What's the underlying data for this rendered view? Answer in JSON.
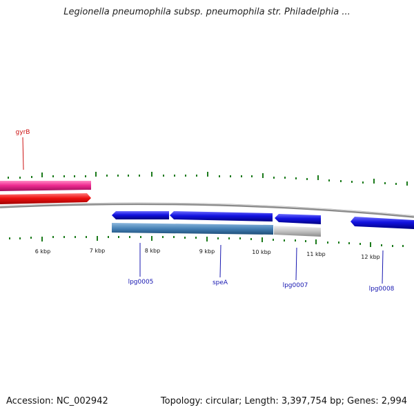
{
  "title": "Legionella pneumophila subsp. pneumophila str. Philadelphia ...",
  "footer": {
    "accession": "Accession: NC_002942",
    "topology": "Topology: circular; Length: 3,397,754 bp; Genes: 2,994"
  },
  "colors": {
    "backbone": "#8a8a8a",
    "tick": "#1a7a1a",
    "gene_pink": "#e8228a",
    "gene_red": "#ee1111",
    "gene_blue": "#1111dd",
    "gene_steelblue": "#3f7ab0",
    "gene_grey": "#bbbbbb",
    "label_blue": "#1515b0",
    "label_red": "#cc1111"
  },
  "scale_labels": [
    "6 kbp",
    "7 kbp",
    "8 kbp",
    "9 kbp",
    "10 kbp",
    "11 kbp",
    "12 kbp"
  ],
  "genes": [
    {
      "label": "gyrB",
      "color": "red"
    },
    {
      "label": "lpg0005",
      "color": "blue"
    },
    {
      "label": "speA",
      "color": "blue"
    },
    {
      "label": "lpg0007",
      "color": "blue"
    },
    {
      "label": "lpg0008",
      "color": "blue"
    }
  ]
}
